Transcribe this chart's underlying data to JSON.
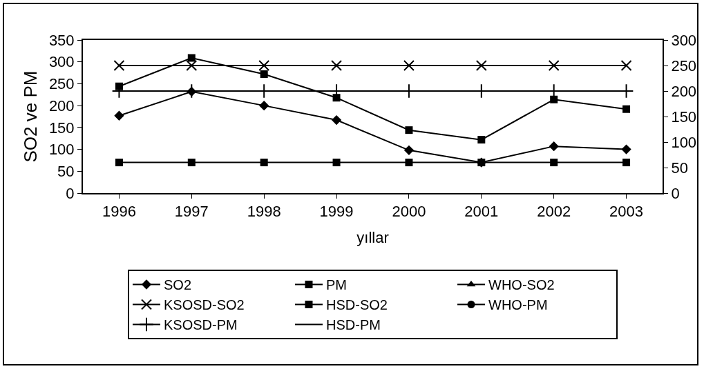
{
  "chart_data": {
    "type": "line",
    "xlabel": "yıllar",
    "ylabel": "SO2 ve PM",
    "categories": [
      "1996",
      "1997",
      "1998",
      "1999",
      "2000",
      "2001",
      "2002",
      "2003"
    ],
    "ylim": [
      0,
      350
    ],
    "yticks": [
      0,
      50,
      100,
      150,
      200,
      250,
      300,
      350
    ],
    "y2lim": [
      0,
      300
    ],
    "y2ticks": [
      0,
      50,
      100,
      150,
      200,
      250,
      300
    ],
    "grid": false,
    "legend": "bottom",
    "series": [
      {
        "name": "SO2",
        "color": "#000000",
        "marker": "diamond",
        "values": [
          177,
          232,
          200,
          167,
          98,
          70,
          107,
          100
        ]
      },
      {
        "name": "PM",
        "color": "#000000",
        "marker": "square",
        "values": [
          244,
          309,
          272,
          218,
          144,
          122,
          214,
          192
        ]
      },
      {
        "name": "WHO-SO2",
        "color": "#000000",
        "marker": "triangle",
        "axis": "y2",
        "values": [
          null,
          null,
          null,
          null,
          null,
          null,
          null,
          null
        ]
      },
      {
        "name": "KSOSD-SO2",
        "color": "#000000",
        "marker": "cross",
        "axis": "y2",
        "values": [
          250,
          250,
          250,
          250,
          250,
          250,
          250,
          250
        ]
      },
      {
        "name": "HSD-SO2",
        "color": "#000000",
        "marker": "square",
        "axis": "y2",
        "values": [
          60,
          60,
          60,
          60,
          60,
          60,
          60,
          60
        ]
      },
      {
        "name": "WHO-PM",
        "color": "#000000",
        "marker": "circle",
        "axis": "y2",
        "values": [
          null,
          null,
          null,
          null,
          null,
          null,
          null,
          null
        ]
      },
      {
        "name": "KSOSD-PM",
        "color": "#000000",
        "marker": "plus",
        "axis": "y2",
        "values": [
          200,
          200,
          200,
          200,
          200,
          200,
          200,
          200
        ]
      },
      {
        "name": "HSD-PM",
        "color": "#000000",
        "marker": "none",
        "axis": "y2",
        "values": [
          null,
          null,
          null,
          null,
          null,
          null,
          null,
          null
        ]
      }
    ]
  }
}
